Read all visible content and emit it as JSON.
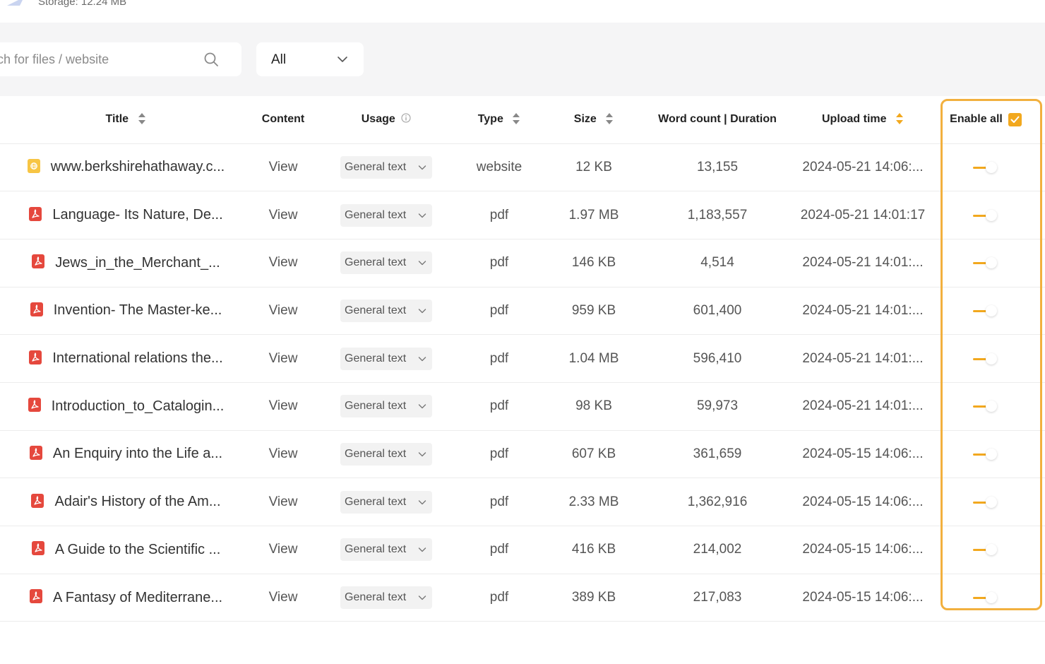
{
  "storage": {
    "label": "Storage: 12.24 MB"
  },
  "toolbar": {
    "search_placeholder": "Search for files / website",
    "filter_value": "All"
  },
  "table": {
    "headers": {
      "title": "Title",
      "content": "Content",
      "usage": "Usage",
      "type": "Type",
      "size": "Size",
      "word_count": "Word count | Duration",
      "upload_time": "Upload time",
      "enable_all": "Enable all"
    },
    "rows": [
      {
        "icon": "website-icon",
        "title": "www.berkshirehathaway.c...",
        "content": "View",
        "usage": "General text",
        "type": "website",
        "size": "12 KB",
        "words": "13,155",
        "uploaded": "2024-05-21 14:06:...",
        "enabled": true
      },
      {
        "icon": "pdf-icon",
        "title": "Language- Its Nature, De...",
        "content": "View",
        "usage": "General text",
        "type": "pdf",
        "size": "1.97 MB",
        "words": "1,183,557",
        "uploaded": "2024-05-21 14:01:17",
        "enabled": true
      },
      {
        "icon": "pdf-icon",
        "title": "Jews_in_the_Merchant_...",
        "content": "View",
        "usage": "General text",
        "type": "pdf",
        "size": "146 KB",
        "words": "4,514",
        "uploaded": "2024-05-21 14:01:...",
        "enabled": true
      },
      {
        "icon": "pdf-icon",
        "title": "Invention- The Master-ke...",
        "content": "View",
        "usage": "General text",
        "type": "pdf",
        "size": "959 KB",
        "words": "601,400",
        "uploaded": "2024-05-21 14:01:...",
        "enabled": true
      },
      {
        "icon": "pdf-icon",
        "title": "International relations the...",
        "content": "View",
        "usage": "General text",
        "type": "pdf",
        "size": "1.04 MB",
        "words": "596,410",
        "uploaded": "2024-05-21 14:01:...",
        "enabled": true
      },
      {
        "icon": "pdf-icon",
        "title": "Introduction_to_Catalogin...",
        "content": "View",
        "usage": "General text",
        "type": "pdf",
        "size": "98 KB",
        "words": "59,973",
        "uploaded": "2024-05-21 14:01:...",
        "enabled": true
      },
      {
        "icon": "pdf-icon",
        "title": "An Enquiry into the Life a...",
        "content": "View",
        "usage": "General text",
        "type": "pdf",
        "size": "607 KB",
        "words": "361,659",
        "uploaded": "2024-05-15 14:06:...",
        "enabled": true
      },
      {
        "icon": "pdf-icon",
        "title": "Adair's History of the Am...",
        "content": "View",
        "usage": "General text",
        "type": "pdf",
        "size": "2.33 MB",
        "words": "1,362,916",
        "uploaded": "2024-05-15 14:06:...",
        "enabled": true
      },
      {
        "icon": "pdf-icon",
        "title": "A Guide to the Scientific ...",
        "content": "View",
        "usage": "General text",
        "type": "pdf",
        "size": "416 KB",
        "words": "214,002",
        "uploaded": "2024-05-15 14:06:...",
        "enabled": true
      },
      {
        "icon": "pdf-icon",
        "title": "A Fantasy of Mediterrane...",
        "content": "View",
        "usage": "General text",
        "type": "pdf",
        "size": "389 KB",
        "words": "217,083",
        "uploaded": "2024-05-15 14:06:...",
        "enabled": true
      }
    ]
  },
  "colors": {
    "accent": "#f2a81e",
    "highlight_border": "#f2b03e",
    "pdf_red": "#e5483d",
    "website_yellow": "#f7c544",
    "toolbar_bg": "#f5f5f6"
  }
}
